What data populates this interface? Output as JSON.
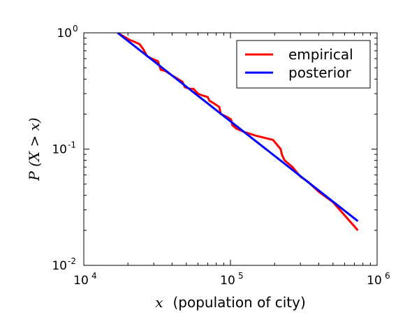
{
  "chart_data": {
    "type": "line",
    "x_scale": "log",
    "y_scale": "log",
    "xlim": [
      10000,
      1000000
    ],
    "ylim": [
      0.01,
      1.0
    ],
    "x_ticks": [
      {
        "base": "10",
        "exp": "4",
        "value": 10000
      },
      {
        "base": "10",
        "exp": "5",
        "value": 100000
      },
      {
        "base": "10",
        "exp": "6",
        "value": 1000000
      }
    ],
    "y_ticks": [
      {
        "base": "10",
        "exp": "0",
        "value": 1.0
      },
      {
        "base": "10",
        "exp": "-1",
        "value": 0.1
      },
      {
        "base": "10",
        "exp": "-2",
        "value": 0.01
      }
    ],
    "xlabel": {
      "math": "x",
      "text": "(population of city)"
    },
    "ylabel": {
      "math": "P (X > x)"
    },
    "legend_position": "top-right",
    "grid": false,
    "series": [
      {
        "name": "empirical",
        "color": "#ff0000",
        "x": [
          17000,
          19000,
          20500,
          22000,
          24000,
          25500,
          27000,
          29000,
          32000,
          33500,
          36000,
          40000,
          44000,
          47000,
          49000,
          53000,
          56000,
          60000,
          64000,
          70000,
          72000,
          76000,
          80000,
          84000,
          86000,
          94000,
          101000,
          103000,
          110000,
          125000,
          150000,
          195000,
          220000,
          224000,
          234000,
          265000,
          300000,
          340000,
          400000,
          500000,
          600000,
          740000
        ],
        "y": [
          1.0,
          0.92,
          0.87,
          0.84,
          0.8,
          0.72,
          0.63,
          0.6,
          0.57,
          0.48,
          0.47,
          0.43,
          0.4,
          0.38,
          0.34,
          0.33,
          0.33,
          0.3,
          0.29,
          0.28,
          0.26,
          0.25,
          0.24,
          0.23,
          0.2,
          0.19,
          0.18,
          0.16,
          0.15,
          0.14,
          0.13,
          0.12,
          0.1,
          0.09,
          0.08,
          0.07,
          0.058,
          0.052,
          0.043,
          0.035,
          0.027,
          0.02
        ]
      },
      {
        "name": "posterior",
        "color": "#0000ff",
        "x": [
          17000,
          740000
        ],
        "y": [
          1.0,
          0.024
        ]
      }
    ]
  }
}
